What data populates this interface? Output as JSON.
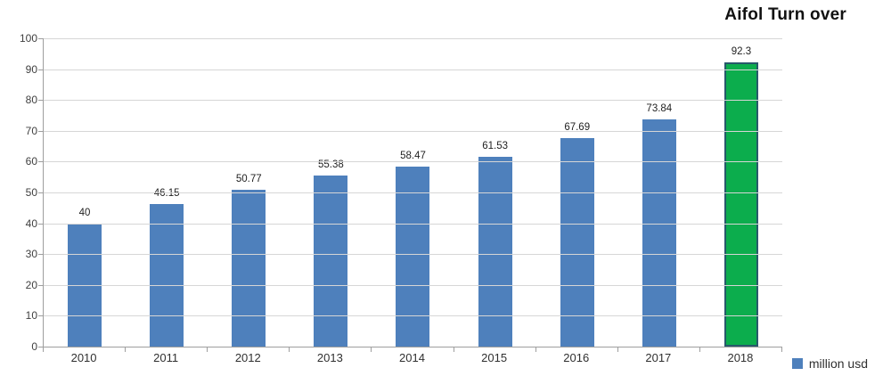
{
  "chart_data": {
    "type": "bar",
    "title": "Aifol Turn over",
    "categories": [
      "2010",
      "2011",
      "2012",
      "2013",
      "2014",
      "2015",
      "2016",
      "2017",
      "2018"
    ],
    "values": [
      40,
      46.15,
      50.77,
      55.38,
      58.47,
      61.53,
      67.69,
      73.84,
      92.3
    ],
    "value_labels": [
      "40",
      "46.15",
      "50.77",
      "55.38",
      "58.47",
      "61.53",
      "67.69",
      "73.84",
      "92.3"
    ],
    "xlabel": "",
    "ylabel": "",
    "ylim": [
      0,
      100
    ],
    "yticks": [
      "0",
      "10",
      "20",
      "30",
      "40",
      "50",
      "60",
      "70",
      "80",
      "90",
      "100"
    ],
    "grid": true,
    "legend": {
      "label": "million usd",
      "position": "bottom-right",
      "swatch_color": "#4e80bc"
    },
    "colors": {
      "bar_color": "#4e80bc",
      "highlight_color": "#0cad4d",
      "highlight_border": "#27596b",
      "gridline_color": "#d6d6d6",
      "axis_color": "#9e9e9e"
    },
    "highlight_index": 8
  }
}
